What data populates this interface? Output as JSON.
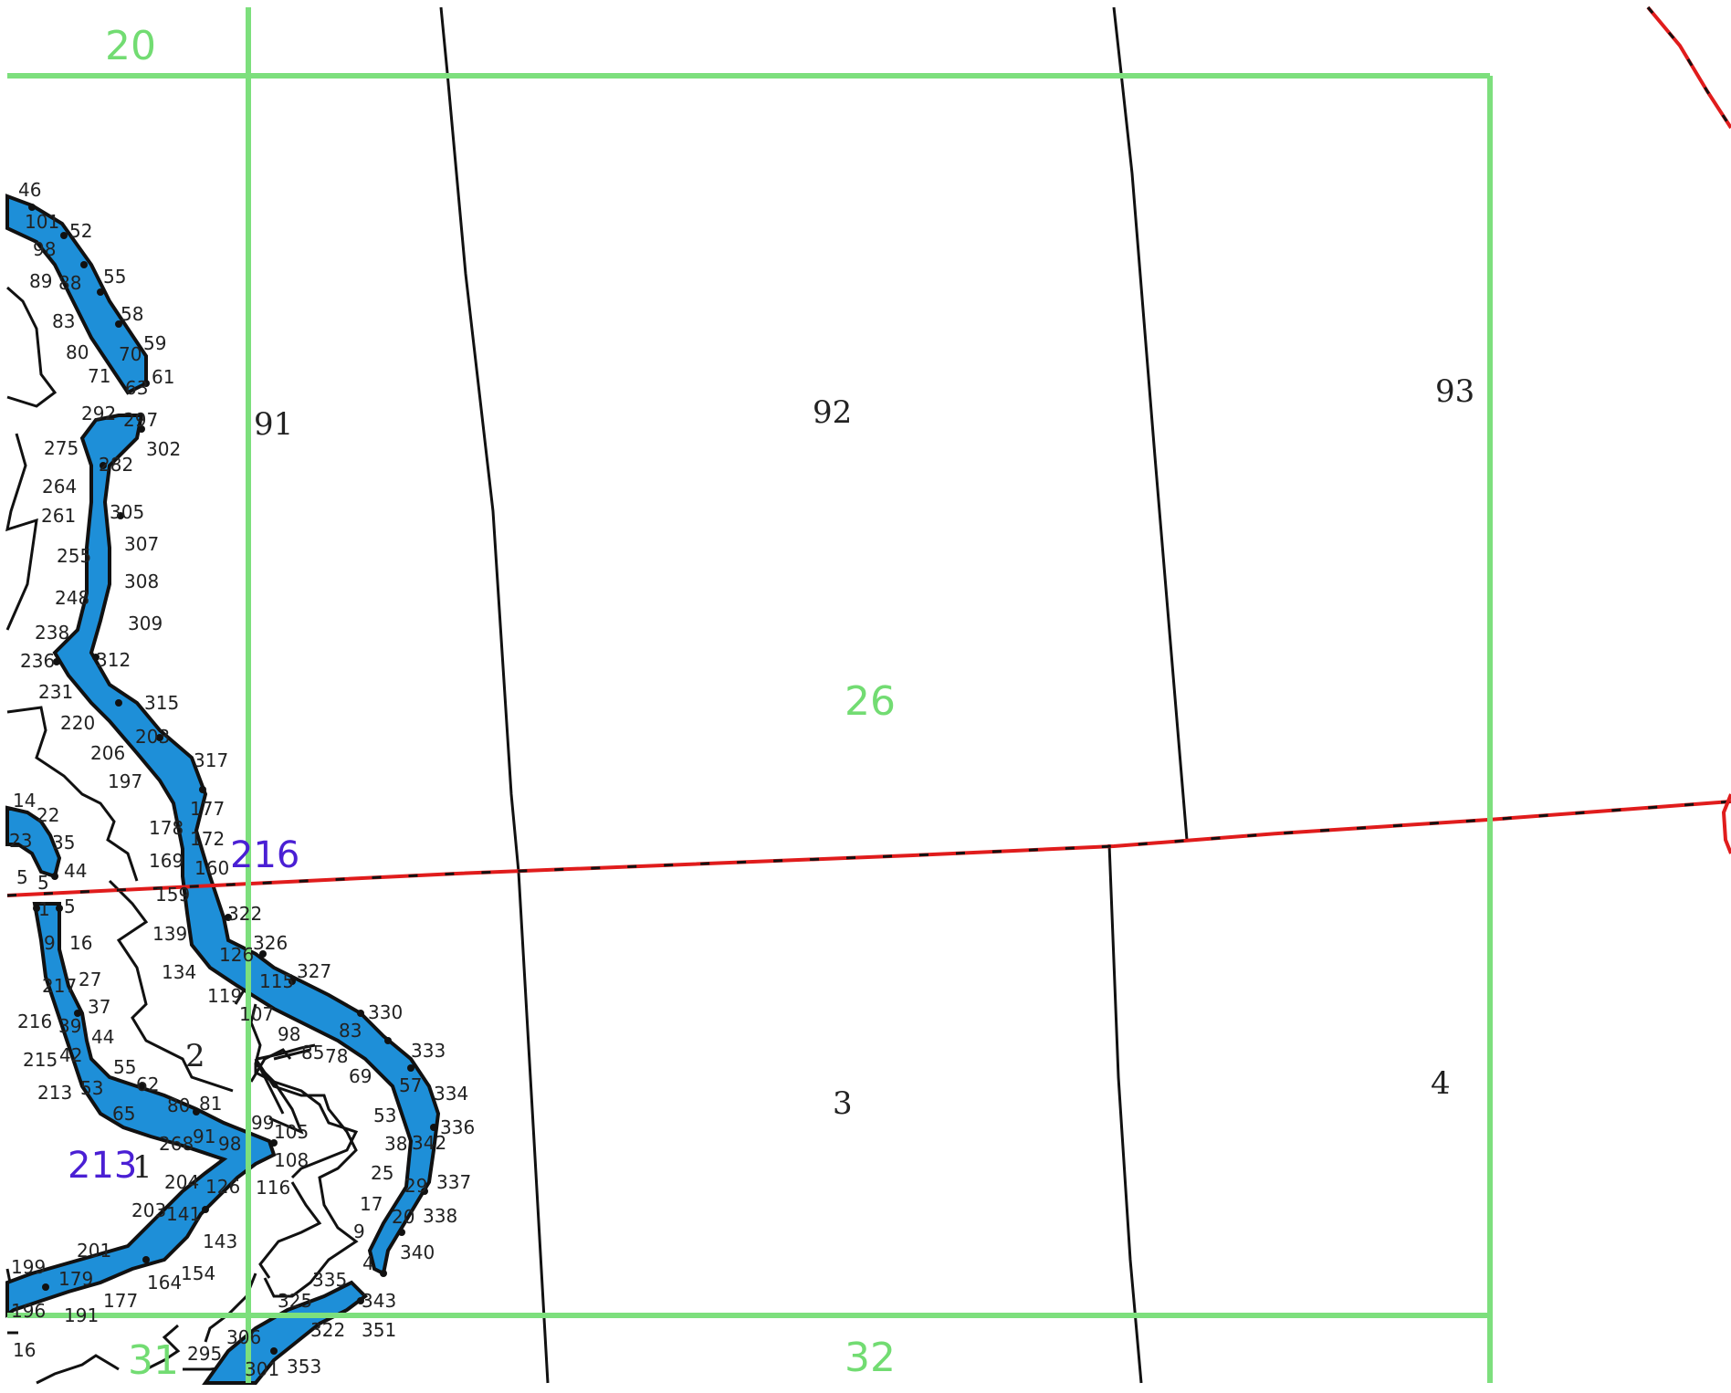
{
  "colors": {
    "grid": "#7ddf7d",
    "grid_label": "#72dc72",
    "river_fill": "#1e8fd8",
    "boundary": "#111111",
    "road_red": "#e01c1c",
    "label_purple": "#4a1fd4",
    "vertex_text": "#222222"
  },
  "grid_labels": [
    "20",
    "26",
    "31",
    "32"
  ],
  "parcel_labels": [
    "91",
    "92",
    "93",
    "3",
    "4",
    "2",
    "1"
  ],
  "region_labels": [
    "216",
    "213"
  ],
  "vertex_labels_upper": [
    "46",
    "101",
    "52",
    "98",
    "89",
    "88",
    "55",
    "83",
    "58",
    "80",
    "70",
    "59",
    "71",
    "63",
    "61",
    "292",
    "297",
    "302",
    "275",
    "282",
    "264",
    "261",
    "305",
    "307",
    "255",
    "308",
    "248",
    "309",
    "238",
    "236",
    "312",
    "231",
    "315",
    "220",
    "203",
    "206",
    "317",
    "197",
    "177",
    "178",
    "172",
    "169",
    "160",
    "159"
  ],
  "vertex_labels_lower": [
    "14",
    "22",
    "23",
    "35",
    "44",
    "5",
    "5",
    "1",
    "5",
    "9",
    "16",
    "27",
    "217",
    "37",
    "216",
    "39",
    "44",
    "215",
    "42",
    "55",
    "213",
    "53",
    "62",
    "65",
    "80",
    "81",
    "268",
    "91",
    "98",
    "99",
    "105",
    "108",
    "204",
    "126",
    "116",
    "203",
    "141",
    "143",
    "201",
    "199",
    "179",
    "164",
    "154",
    "196",
    "191",
    "177",
    "16",
    "306",
    "295",
    "301",
    "353",
    "325",
    "335",
    "322",
    "343",
    "351",
    "322",
    "139",
    "326",
    "126",
    "134",
    "115",
    "327",
    "119",
    "107",
    "330",
    "98",
    "83",
    "85",
    "78",
    "333",
    "69",
    "57",
    "334",
    "53",
    "336",
    "38",
    "342",
    "25",
    "29",
    "337",
    "17",
    "20",
    "338",
    "9",
    "340",
    "4"
  ]
}
